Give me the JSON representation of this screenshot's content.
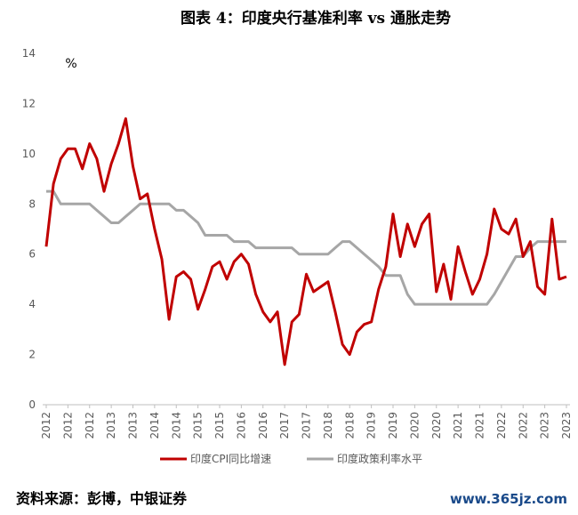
{
  "title": "图表 4：印度央行基准利率 vs 通胀走势",
  "source": "资料来源：彭博，中银证券",
  "watermark": "www.365jz.com",
  "chart_data": {
    "type": "line",
    "unit_label": "%",
    "categories": [
      "2012",
      null,
      null,
      "2012",
      null,
      null,
      "2012",
      null,
      null,
      "2013",
      null,
      null,
      "2013",
      null,
      null,
      "2014",
      null,
      null,
      "2014",
      null,
      null,
      "2015",
      null,
      null,
      "2015",
      null,
      null,
      "2016",
      null,
      null,
      "2016",
      null,
      null,
      "2017",
      null,
      null,
      "2017",
      null,
      null,
      "2018",
      null,
      null,
      "2018",
      null,
      null,
      "2019",
      null,
      null,
      "2019",
      null,
      null,
      "2020",
      null,
      null,
      "2020",
      null,
      null,
      "2021",
      null,
      null,
      "2021",
      null,
      null,
      "2022",
      null,
      null,
      "2022",
      null,
      null,
      "2023",
      null,
      null,
      "2023"
    ],
    "series": [
      {
        "name": "印度CPI同比增速",
        "color": "#c00000",
        "values": [
          6.3,
          8.8,
          9.8,
          10.2,
          10.2,
          9.4,
          10.4,
          9.8,
          8.5,
          9.6,
          10.4,
          11.4,
          9.5,
          8.2,
          8.4,
          7.0,
          5.8,
          3.4,
          5.1,
          5.3,
          5.0,
          3.8,
          4.6,
          5.5,
          5.7,
          5.0,
          5.7,
          6.0,
          5.6,
          4.4,
          3.7,
          3.3,
          3.7,
          1.6,
          3.3,
          3.6,
          5.2,
          4.5,
          4.7,
          4.9,
          3.7,
          2.4,
          2.0,
          2.9,
          3.2,
          3.3,
          4.6,
          5.5,
          7.6,
          5.9,
          7.2,
          6.3,
          7.2,
          7.6,
          4.5,
          5.6,
          4.2,
          6.3,
          5.3,
          4.4,
          5.0,
          6.0,
          7.8,
          7.0,
          6.8,
          7.4,
          5.9,
          6.5,
          4.7,
          4.4,
          7.4,
          5.0,
          5.1
        ]
      },
      {
        "name": "印度政策利率水平",
        "color": "#a6a6a6",
        "values": [
          8.5,
          8.5,
          8.0,
          8.0,
          8.0,
          8.0,
          8.0,
          7.75,
          7.5,
          7.25,
          7.25,
          7.5,
          7.75,
          8.0,
          8.0,
          8.0,
          8.0,
          8.0,
          7.75,
          7.75,
          7.5,
          7.25,
          6.75,
          6.75,
          6.75,
          6.75,
          6.5,
          6.5,
          6.5,
          6.25,
          6.25,
          6.25,
          6.25,
          6.25,
          6.25,
          6.0,
          6.0,
          6.0,
          6.0,
          6.0,
          6.25,
          6.5,
          6.5,
          6.25,
          6.0,
          5.75,
          5.5,
          5.15,
          5.15,
          5.15,
          4.4,
          4.0,
          4.0,
          4.0,
          4.0,
          4.0,
          4.0,
          4.0,
          4.0,
          4.0,
          4.0,
          4.0,
          4.4,
          4.9,
          5.4,
          5.9,
          5.9,
          6.25,
          6.5,
          6.5,
          6.5,
          6.5,
          6.5
        ]
      }
    ],
    "ylim": [
      0,
      14
    ],
    "yticks": [
      0,
      2,
      4,
      6,
      8,
      10,
      12,
      14
    ]
  }
}
